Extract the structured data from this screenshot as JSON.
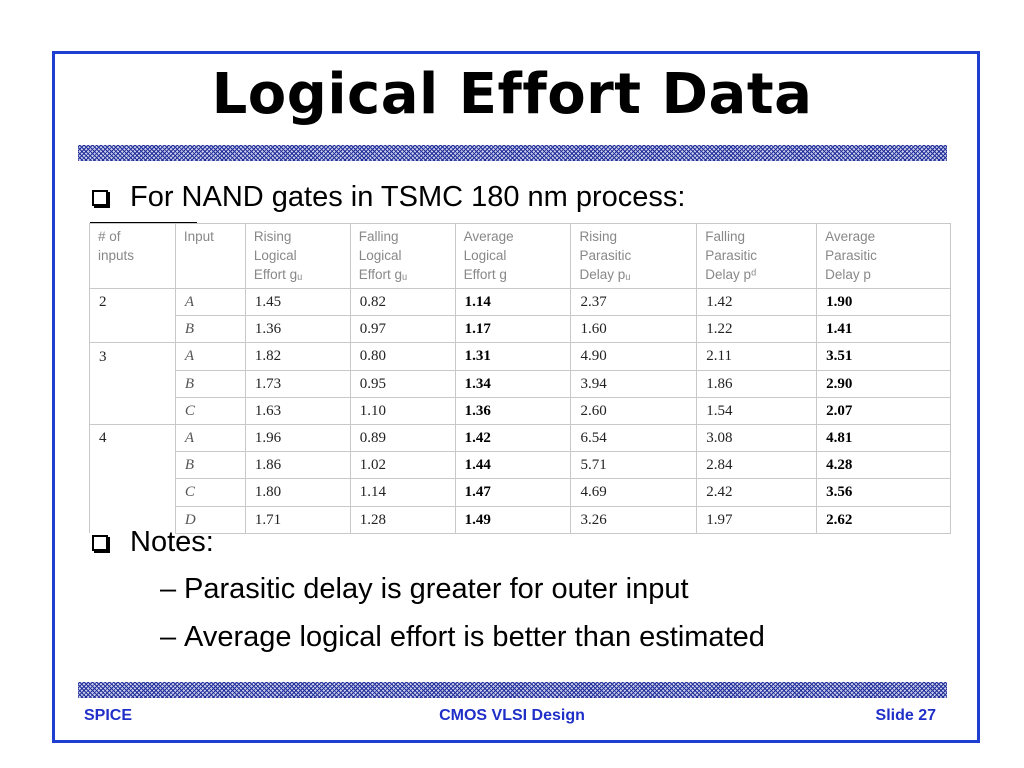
{
  "slide": {
    "title": "Logical Effort Data",
    "bullet_intro": "For NAND gates in TSMC 180 nm process:",
    "bullet_notes": "Notes:",
    "sub_items": [
      "Parasitic delay is greater for outer input",
      "Average logical effort is better than estimated"
    ]
  },
  "table": {
    "headers": [
      [
        "# of",
        "inputs",
        ""
      ],
      [
        "Input",
        "",
        ""
      ],
      [
        "Rising",
        "Logical",
        "Effort gᵤ"
      ],
      [
        "Falling",
        "Logical",
        "Effort gᵤ"
      ],
      [
        "Average",
        "Logical",
        "Effort g"
      ],
      [
        "Rising",
        "Parasitic",
        "Delay pᵤ"
      ],
      [
        "Falling",
        "Parasitic",
        "Delay pᵈ"
      ],
      [
        "Average",
        "Parasitic",
        "Delay p"
      ]
    ],
    "rows": [
      [
        "2",
        "A",
        "1.45",
        "0.82",
        "1.14",
        "2.37",
        "1.42",
        "1.90"
      ],
      [
        "",
        "B",
        "1.36",
        "0.97",
        "1.17",
        "1.60",
        "1.22",
        "1.41"
      ],
      [
        "3",
        "A",
        "1.82",
        "0.80",
        "1.31",
        "4.90",
        "2.11",
        "3.51"
      ],
      [
        "",
        "B",
        "1.73",
        "0.95",
        "1.34",
        "3.94",
        "1.86",
        "2.90"
      ],
      [
        "",
        "C",
        "1.63",
        "1.10",
        "1.36",
        "2.60",
        "1.54",
        "2.07"
      ],
      [
        "4",
        "A",
        "1.96",
        "0.89",
        "1.42",
        "6.54",
        "3.08",
        "4.81"
      ],
      [
        "",
        "B",
        "1.86",
        "1.02",
        "1.44",
        "5.71",
        "2.84",
        "4.28"
      ],
      [
        "",
        "C",
        "1.80",
        "1.14",
        "1.47",
        "4.69",
        "2.42",
        "3.56"
      ],
      [
        "",
        "D",
        "1.71",
        "1.28",
        "1.49",
        "3.26",
        "1.97",
        "2.62"
      ]
    ]
  },
  "footer": {
    "left": "SPICE",
    "center": "CMOS VLSI Design",
    "right": "Slide 27"
  },
  "colors": {
    "frame": "#1f3fd0",
    "footer_text": "#1f2fc8",
    "hatch": "#1f2e9a"
  },
  "icons": {
    "bullet": "checkbox-square-icon"
  }
}
